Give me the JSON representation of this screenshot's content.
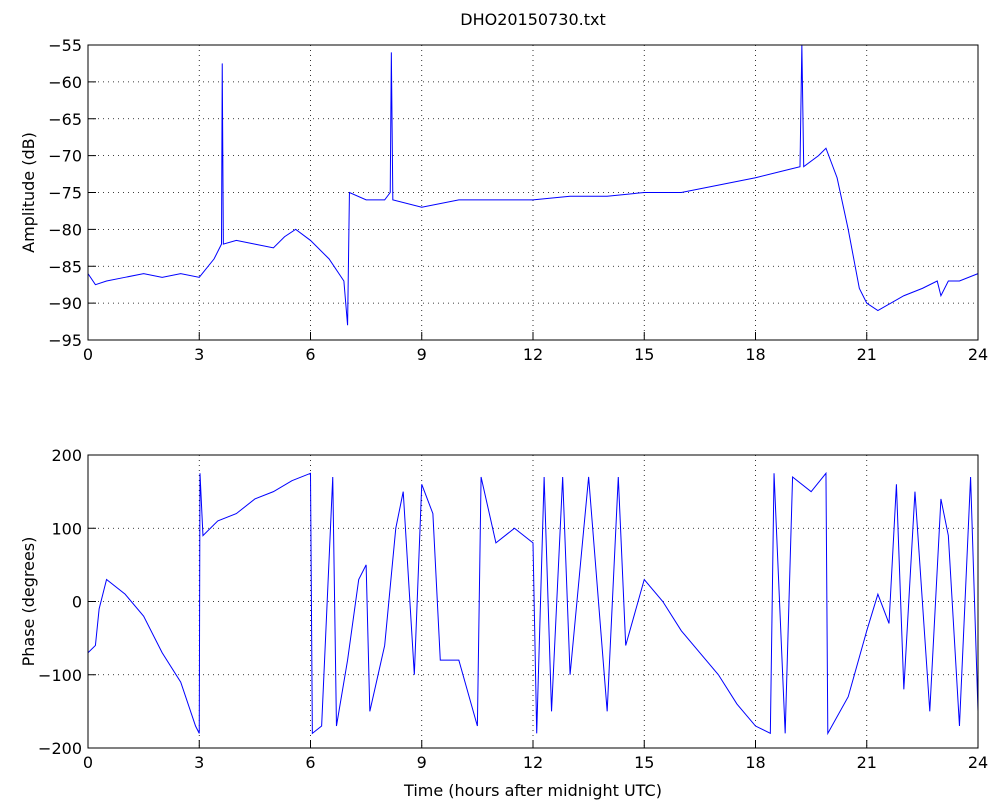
{
  "chart_data": [
    {
      "type": "line",
      "title": "DHO20150730.txt",
      "ylabel": "Amplitude (dB)",
      "xlim": [
        0,
        24
      ],
      "xticks": [
        0,
        3,
        6,
        9,
        12,
        15,
        18,
        21,
        24
      ],
      "ylim": [
        -95,
        -55
      ],
      "yticks": [
        {
          "value": -95,
          "label": "−95"
        },
        {
          "value": -90,
          "label": "−90"
        },
        {
          "value": -85,
          "label": "−85"
        },
        {
          "value": -80,
          "label": "−80"
        },
        {
          "value": -75,
          "label": "−75"
        },
        {
          "value": -70,
          "label": "−70"
        },
        {
          "value": -65,
          "label": "−65"
        },
        {
          "value": -60,
          "label": "−60"
        },
        {
          "value": -55,
          "label": "−55"
        }
      ],
      "grid": true,
      "series": [
        {
          "color": "#0000ff",
          "x": [
            0,
            0.2,
            0.5,
            1,
            1.5,
            2,
            2.5,
            3,
            3.4,
            3.6,
            3.62,
            3.65,
            4,
            4.5,
            5,
            5.3,
            5.6,
            6,
            6.5,
            6.9,
            7.0,
            7.05,
            7.5,
            8,
            8.15,
            8.18,
            8.22,
            9,
            10,
            11,
            12,
            13,
            14,
            15,
            16,
            17,
            18,
            18.8,
            19.2,
            19.25,
            19.3,
            19.7,
            19.9,
            20.2,
            20.5,
            20.8,
            21,
            21.3,
            22,
            22.5,
            22.9,
            23,
            23.2,
            23.5,
            24
          ],
          "values": [
            -86,
            -87.5,
            -87,
            -86.5,
            -86,
            -86.5,
            -86,
            -86.5,
            -84,
            -82,
            -57.5,
            -82,
            -81.5,
            -82,
            -82.5,
            -81,
            -80,
            -81.5,
            -84,
            -87,
            -93,
            -75,
            -76,
            -76,
            -75,
            -56,
            -76,
            -77,
            -76,
            -76,
            -76,
            -75.5,
            -75.5,
            -75,
            -75,
            -74,
            -73,
            -72,
            -71.5,
            -55,
            -71.5,
            -70,
            -69,
            -73,
            -80,
            -88,
            -90,
            -91,
            -89,
            -88,
            -87,
            -89,
            -87,
            -87,
            -86
          ]
        }
      ]
    },
    {
      "type": "line",
      "ylabel": "Phase (degrees)",
      "xlabel": "Time (hours after midnight UTC)",
      "xlim": [
        0,
        24
      ],
      "xticks": [
        0,
        3,
        6,
        9,
        12,
        15,
        18,
        21,
        24
      ],
      "ylim": [
        -200,
        200
      ],
      "yticks": [
        {
          "value": -200,
          "label": "−200"
        },
        {
          "value": -100,
          "label": "−100"
        },
        0,
        100,
        200
      ],
      "grid": true,
      "series": [
        {
          "color": "#0000ff",
          "x": [
            0,
            0.2,
            0.3,
            0.5,
            1,
            1.5,
            2,
            2.5,
            2.9,
            3.0,
            3.02,
            3.1,
            3.5,
            4,
            4.5,
            5,
            5.5,
            6,
            6.05,
            6.3,
            6.6,
            6.7,
            7,
            7.3,
            7.5,
            7.6,
            8,
            8.3,
            8.5,
            8.8,
            9,
            9.3,
            9.5,
            10,
            10.5,
            10.6,
            11,
            11.5,
            12,
            12.1,
            12.3,
            12.5,
            12.8,
            13,
            13.5,
            14,
            14.3,
            14.5,
            15,
            15.5,
            16,
            16.5,
            17,
            17.5,
            18,
            18.4,
            18.5,
            18.8,
            19,
            19.5,
            19.9,
            19.95,
            20.5,
            21,
            21.3,
            21.6,
            21.8,
            22,
            22.3,
            22.7,
            23,
            23.2,
            23.5,
            23.8,
            24
          ],
          "values": [
            -70,
            -60,
            -10,
            30,
            10,
            -20,
            -70,
            -110,
            -170,
            -180,
            175,
            90,
            110,
            120,
            140,
            150,
            165,
            175,
            -180,
            -170,
            170,
            -170,
            -80,
            30,
            50,
            -150,
            -60,
            100,
            150,
            -100,
            160,
            120,
            -80,
            -80,
            -170,
            170,
            80,
            100,
            80,
            -180,
            170,
            -150,
            170,
            -100,
            170,
            -150,
            170,
            -60,
            30,
            0,
            -40,
            -70,
            -100,
            -140,
            -170,
            -180,
            175,
            -180,
            170,
            150,
            175,
            -180,
            -130,
            -40,
            10,
            -30,
            160,
            -120,
            150,
            -150,
            140,
            90,
            -170,
            170,
            -150
          ]
        }
      ]
    }
  ]
}
